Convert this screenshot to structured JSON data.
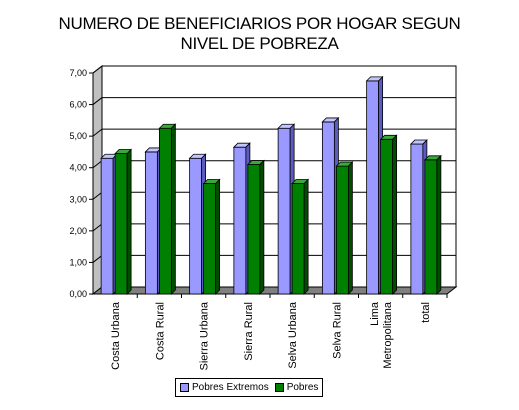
{
  "chart_data": {
    "type": "bar",
    "title": [
      "NUMERO DE BENEFICIARIOS POR HOGAR SEGUN",
      "NIVEL DE POBREZA"
    ],
    "categories": [
      [
        "Costa Urbana"
      ],
      [
        "Costa Rural"
      ],
      [
        "Sierra Urbana"
      ],
      [
        "Sierra Rural"
      ],
      [
        "Selva Urbana"
      ],
      [
        "Selva Rural"
      ],
      [
        "Lima",
        "Metropolitana"
      ],
      [
        "total"
      ]
    ],
    "series": [
      {
        "name": "Pobres Extremos",
        "values": [
          4.3,
          4.5,
          4.3,
          4.65,
          5.25,
          5.45,
          6.75,
          4.75
        ]
      },
      {
        "name": "Pobres",
        "values": [
          4.45,
          5.25,
          3.5,
          4.1,
          3.5,
          4.05,
          4.9,
          4.25
        ]
      }
    ],
    "ylim": [
      0,
      7
    ],
    "yticks": [
      "0,00",
      "1,00",
      "2,00",
      "3,00",
      "4,00",
      "5,00",
      "6,00",
      "7,00"
    ],
    "grid": true,
    "legend_position": "bottom",
    "colors": {
      "series": [
        "#9999ff",
        "#008000"
      ],
      "series_top": [
        "#c4c4ff",
        "#3aa83a"
      ],
      "series_side": [
        "#5c5cc0",
        "#004d00"
      ],
      "wall": "#ffffff",
      "floor": "#808080"
    }
  }
}
